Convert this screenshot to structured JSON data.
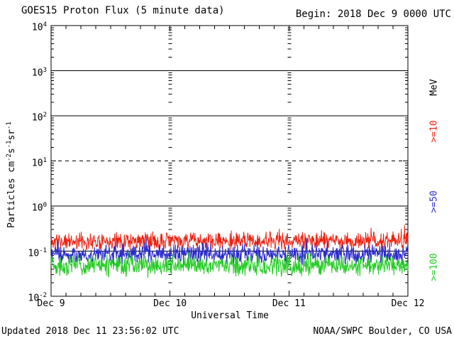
{
  "header": {
    "title": "GOES15 Proton Flux (5 minute data)",
    "begin": "Begin: 2018 Dec 9 0000 UTC"
  },
  "footer": {
    "updated": "Updated 2018 Dec 11 23:56:02 UTC",
    "source": "NOAA/SWPC Boulder, CO USA"
  },
  "chart_data": {
    "type": "line",
    "title": "GOES15 Proton Flux (5 minute data)",
    "begin": "Begin: 2018 Dec 9 0000 UTC",
    "xlabel": "Universal Time",
    "ylabel": "Particles cm^-2 s^-1 sr^-1",
    "ylabel_segments": [
      {
        "text": "Particles cm"
      },
      {
        "text": "-2",
        "sup": true
      },
      {
        "text": "s"
      },
      {
        "text": "-1",
        "sup": true
      },
      {
        "text": "sr"
      },
      {
        "text": "-1",
        "sup": true
      }
    ],
    "y_scale": "log",
    "y_exponents": [
      4,
      3,
      2,
      1,
      0,
      -1,
      -2
    ],
    "ylim": [
      0.01,
      10000
    ],
    "dashed_threshold_value": 10,
    "grid": {
      "decade_lines": "solid",
      "threshold_line_at_10": "dashed",
      "day_boundary_minor_tick_columns": true,
      "legend_position": "right-outside"
    },
    "x_tick_labels": [
      "Dec 9",
      "Dec 10",
      "Dec 11",
      "Dec 12"
    ],
    "x_span_days": 3,
    "sample_minutes": 5,
    "right_axis_unit": "MeV",
    "series": [
      {
        "label": ">=10",
        "energy": ">=10 MeV",
        "color": "#ee2211",
        "flux_typical_range": [
          0.1,
          0.28
        ],
        "flux_peak": 0.45,
        "flux_median": 0.16,
        "character": "noisy quiet-background band hugging 1e-1"
      },
      {
        "label": ">=50",
        "energy": ">=50 MeV",
        "color": "#2a2acc",
        "flux_typical_range": [
          0.048,
          0.15
        ],
        "flux_peak": 0.25,
        "flux_median": 0.085,
        "character": "noisy band straddling just below 1e-1"
      },
      {
        "label": ">=100",
        "energy": ">=100 MeV",
        "color": "#22cc22",
        "flux_typical_range": [
          0.025,
          0.09
        ],
        "flux_peak": 0.115,
        "flux_median": 0.047,
        "character": "noisy band between 2.5e-2 and 1e-1"
      }
    ]
  }
}
